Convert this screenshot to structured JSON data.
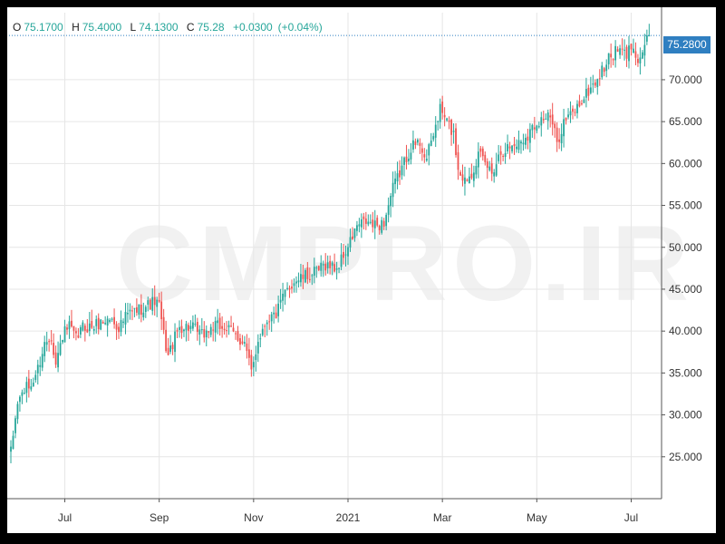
{
  "watermark": "CMPRO.IR",
  "legend": {
    "open_label": "O",
    "open": "75.1700",
    "high_label": "H",
    "high": "75.4000",
    "low_label": "L",
    "low": "74.1300",
    "close_label": "C",
    "close": "75.28",
    "change": "+0.0300",
    "change_pct": "(+0.04%)"
  },
  "price_badge": "75.2800",
  "colors": {
    "up": "#26a69a",
    "down": "#ef5350",
    "grid": "#e6e6e6",
    "axis": "#555555",
    "price_line": "#2f7fc1",
    "badge": "#2f7fc1"
  },
  "chart_data": {
    "type": "candlestick",
    "y_range": [
      20,
      78
    ],
    "y_ticks": [
      25,
      30,
      35,
      40,
      45,
      50,
      55,
      60,
      65,
      70
    ],
    "y_tick_labels": [
      "25.000",
      "30.000",
      "35.000",
      "40.000",
      "45.000",
      "50.000",
      "55.000",
      "60.000",
      "65.000",
      "70.000"
    ],
    "x_tick_labels": [
      "Jul",
      "Sep",
      "Nov",
      "2021",
      "Mar",
      "May",
      "Jul"
    ],
    "x_tick_indices": [
      24,
      66,
      108,
      150,
      192,
      234,
      276
    ],
    "last_price": 75.28,
    "grid": true,
    "legend_position": "top-left",
    "close_path": [
      [
        0,
        25.5
      ],
      [
        3,
        31.5
      ],
      [
        6,
        33
      ],
      [
        9,
        33.5
      ],
      [
        12,
        35.5
      ],
      [
        15,
        38.5
      ],
      [
        18,
        39.5
      ],
      [
        20,
        36
      ],
      [
        23,
        39.5
      ],
      [
        26,
        40.5
      ],
      [
        29,
        39
      ],
      [
        32,
        40.5
      ],
      [
        36,
        40.5
      ],
      [
        40,
        41
      ],
      [
        44,
        41.5
      ],
      [
        48,
        40.5
      ],
      [
        52,
        42
      ],
      [
        56,
        42.5
      ],
      [
        60,
        43
      ],
      [
        64,
        43.5
      ],
      [
        66,
        43
      ],
      [
        68,
        39.5
      ],
      [
        70,
        37
      ],
      [
        72,
        38.5
      ],
      [
        75,
        40.5
      ],
      [
        80,
        40.5
      ],
      [
        85,
        39.5
      ],
      [
        90,
        40.5
      ],
      [
        95,
        40.5
      ],
      [
        100,
        39.5
      ],
      [
        104,
        38.5
      ],
      [
        107,
        35
      ],
      [
        110,
        39
      ],
      [
        114,
        41.5
      ],
      [
        118,
        42
      ],
      [
        122,
        44.5
      ],
      [
        126,
        46
      ],
      [
        131,
        46.5
      ],
      [
        136,
        47
      ],
      [
        140,
        48
      ],
      [
        145,
        47.5
      ],
      [
        150,
        50
      ],
      [
        154,
        52.5
      ],
      [
        158,
        53
      ],
      [
        162,
        52.5
      ],
      [
        166,
        53
      ],
      [
        170,
        57
      ],
      [
        174,
        59.5
      ],
      [
        178,
        62
      ],
      [
        182,
        62.5
      ],
      [
        185,
        60.5
      ],
      [
        188,
        63.5
      ],
      [
        191,
        66.5
      ],
      [
        194,
        65
      ],
      [
        197,
        63.5
      ],
      [
        199,
        59.5
      ],
      [
        202,
        58
      ],
      [
        205,
        59
      ],
      [
        208,
        61
      ],
      [
        211,
        60
      ],
      [
        214,
        59
      ],
      [
        218,
        61.5
      ],
      [
        222,
        62
      ],
      [
        226,
        62.5
      ],
      [
        230,
        63.5
      ],
      [
        234,
        65
      ],
      [
        237,
        65.5
      ],
      [
        240,
        65.5
      ],
      [
        243,
        62.5
      ],
      [
        246,
        65
      ],
      [
        250,
        66
      ],
      [
        254,
        67.5
      ],
      [
        258,
        69
      ],
      [
        262,
        70.5
      ],
      [
        266,
        72.5
      ],
      [
        270,
        73.5
      ],
      [
        274,
        73
      ],
      [
        277,
        74.5
      ],
      [
        279,
        72
      ],
      [
        281,
        73.5
      ],
      [
        284,
        75.28
      ]
    ]
  }
}
